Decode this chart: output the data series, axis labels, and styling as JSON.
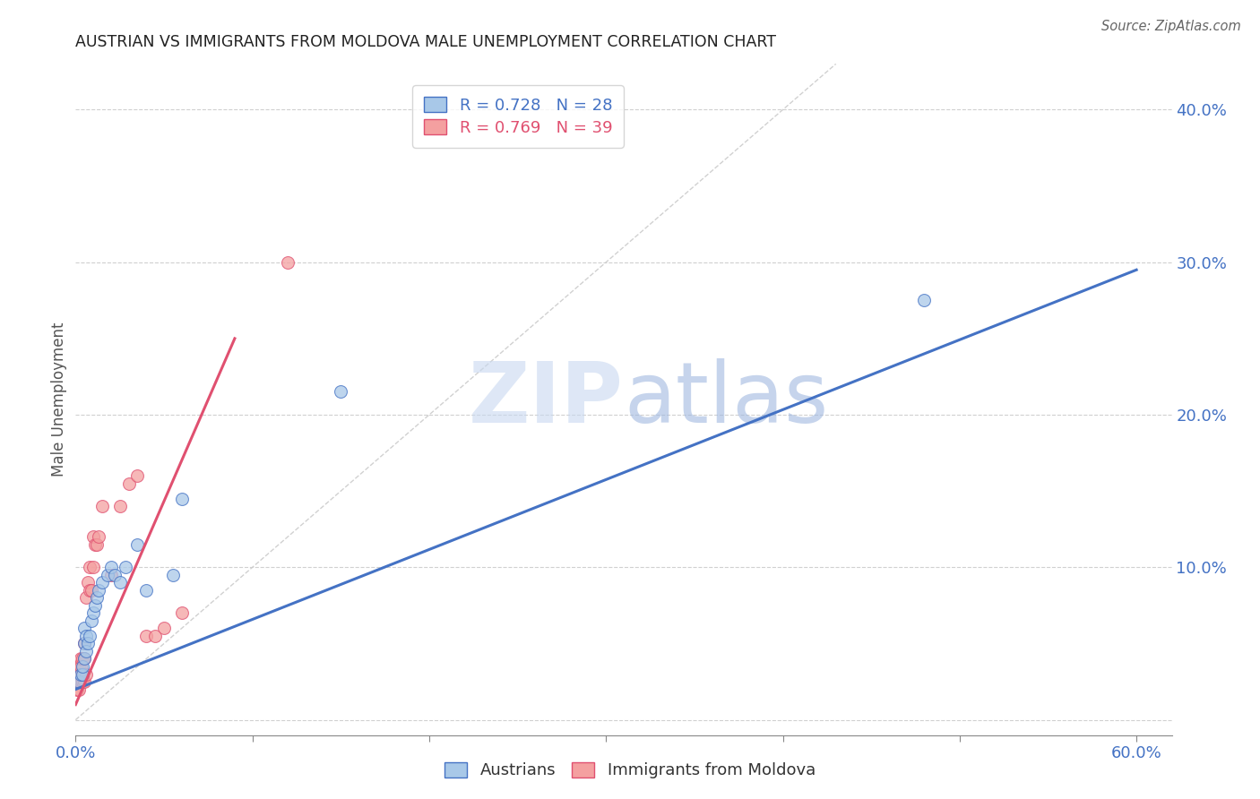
{
  "title": "AUSTRIAN VS IMMIGRANTS FROM MOLDOVA MALE UNEMPLOYMENT CORRELATION CHART",
  "source": "Source: ZipAtlas.com",
  "ylabel": "Male Unemployment",
  "xlim": [
    0.0,
    0.62
  ],
  "ylim": [
    -0.01,
    0.43
  ],
  "xticks": [
    0.0,
    0.1,
    0.2,
    0.3,
    0.4,
    0.5,
    0.6
  ],
  "yticks": [
    0.0,
    0.1,
    0.2,
    0.3,
    0.4
  ],
  "ytick_labels": [
    "",
    "10.0%",
    "20.0%",
    "30.0%",
    "40.0%"
  ],
  "xtick_show_first_last_only": true,
  "xtick_label_first": "0.0%",
  "xtick_label_last": "60.0%",
  "legend_blue_R": "R = 0.728",
  "legend_blue_N": "N = 28",
  "legend_pink_R": "R = 0.769",
  "legend_pink_N": "N = 39",
  "blue_scatter_color": "#a8c8e8",
  "pink_scatter_color": "#f4a0a0",
  "blue_line_color": "#4472c4",
  "pink_line_color": "#e05070",
  "blue_edge_color": "#4472c4",
  "pink_edge_color": "#e05070",
  "watermark_zip": "ZIP",
  "watermark_atlas": "atlas",
  "watermark_zip_color": "#c8d8f0",
  "watermark_atlas_color": "#a0b8e0",
  "background_color": "#ffffff",
  "grid_color": "#d0d0d0",
  "austrians_label": "Austrians",
  "moldova_label": "Immigrants from Moldova",
  "blue_scatter_x": [
    0.002,
    0.003,
    0.004,
    0.004,
    0.005,
    0.005,
    0.005,
    0.006,
    0.006,
    0.007,
    0.008,
    0.009,
    0.01,
    0.011,
    0.012,
    0.013,
    0.015,
    0.018,
    0.02,
    0.022,
    0.025,
    0.028,
    0.035,
    0.04,
    0.055,
    0.06,
    0.15,
    0.48
  ],
  "blue_scatter_y": [
    0.025,
    0.03,
    0.03,
    0.035,
    0.04,
    0.05,
    0.06,
    0.045,
    0.055,
    0.05,
    0.055,
    0.065,
    0.07,
    0.075,
    0.08,
    0.085,
    0.09,
    0.095,
    0.1,
    0.095,
    0.09,
    0.1,
    0.115,
    0.085,
    0.095,
    0.145,
    0.215,
    0.275
  ],
  "pink_scatter_x": [
    0.001,
    0.001,
    0.001,
    0.001,
    0.002,
    0.002,
    0.002,
    0.002,
    0.003,
    0.003,
    0.003,
    0.003,
    0.004,
    0.004,
    0.004,
    0.005,
    0.005,
    0.005,
    0.006,
    0.006,
    0.007,
    0.008,
    0.008,
    0.009,
    0.01,
    0.01,
    0.011,
    0.012,
    0.013,
    0.015,
    0.02,
    0.025,
    0.03,
    0.035,
    0.04,
    0.045,
    0.05,
    0.06,
    0.12
  ],
  "pink_scatter_y": [
    0.02,
    0.025,
    0.03,
    0.035,
    0.02,
    0.025,
    0.03,
    0.035,
    0.025,
    0.03,
    0.035,
    0.04,
    0.025,
    0.03,
    0.04,
    0.025,
    0.04,
    0.05,
    0.03,
    0.08,
    0.09,
    0.085,
    0.1,
    0.085,
    0.1,
    0.12,
    0.115,
    0.115,
    0.12,
    0.14,
    0.095,
    0.14,
    0.155,
    0.16,
    0.055,
    0.055,
    0.06,
    0.07,
    0.3
  ],
  "blue_line_x": [
    0.0,
    0.6
  ],
  "blue_line_y": [
    0.02,
    0.295
  ],
  "pink_line_x": [
    0.0,
    0.09
  ],
  "pink_line_y": [
    0.01,
    0.25
  ],
  "diagonal_line_x": [
    0.0,
    0.43
  ],
  "diagonal_line_y": [
    0.0,
    0.43
  ]
}
